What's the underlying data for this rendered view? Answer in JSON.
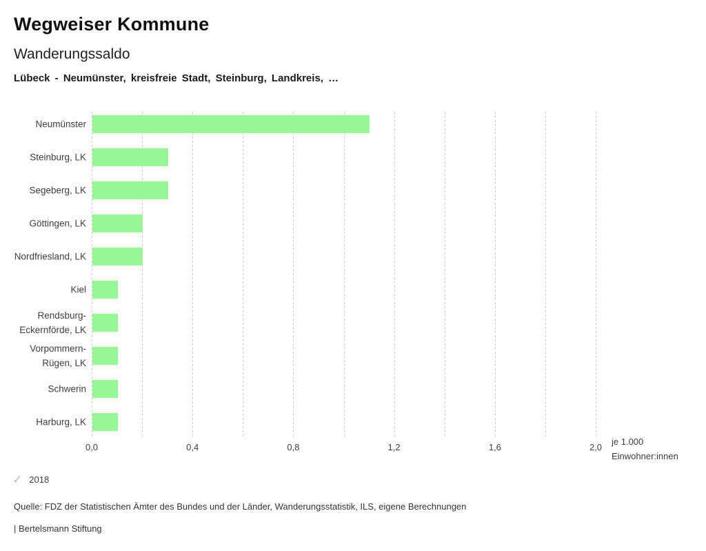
{
  "header": {
    "app_title": "Wegweiser Kommune",
    "chart_title": "Wanderungssaldo",
    "subtitle": "Lübeck - Neumünster, kreisfreie Stadt, Steinburg, Landkreis, …"
  },
  "chart_data": {
    "type": "bar",
    "orientation": "horizontal",
    "title": "Wanderungssaldo",
    "categories": [
      "Neumünster",
      "Steinburg, LK",
      "Segeberg, LK",
      "Göttingen, LK",
      "Nordfriesland, LK",
      "Kiel",
      "Rendsburg-Eckernförde, LK",
      "Vorpommern-Rügen, LK",
      "Schwerin",
      "Harburg, LK"
    ],
    "series": [
      {
        "name": "2018",
        "values": [
          1.1,
          0.3,
          0.3,
          0.2,
          0.2,
          0.1,
          0.1,
          0.1,
          0.1,
          0.1
        ]
      }
    ],
    "xlim": [
      0,
      2.0
    ],
    "x_ticks": [
      "0,0",
      "0,4",
      "0,8",
      "1,2",
      "1,6",
      "2,0"
    ],
    "x_tick_values": [
      0,
      0.4,
      0.8,
      1.2,
      1.6,
      2.0
    ],
    "gridline_step": 0.2,
    "grid": "vertical-dotted",
    "legend_position": "bottom-left",
    "unit_label_line1": "je 1.000",
    "unit_label_line2": "Einwohner:innen",
    "bar_color": "#98f598",
    "grid_color": "#c9c9c9"
  },
  "legend": {
    "check_icon": "✓",
    "check_color": "#8edd8e",
    "year": "2018"
  },
  "footer": {
    "source": "Quelle: FDZ der Statistischen Ämter des Bundes und der Länder, Wanderungsstatistik, ILS, eigene Berechnungen",
    "attribution": "| Bertelsmann Stiftung"
  }
}
